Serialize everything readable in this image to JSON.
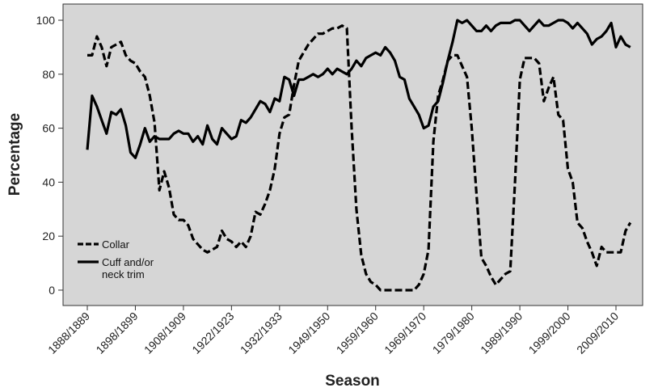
{
  "chart_data": {
    "type": "line",
    "xlabel": "Season",
    "ylabel": "Percentage",
    "categories": [
      "1888/1889",
      null,
      null,
      null,
      null,
      null,
      null,
      null,
      null,
      null,
      "1898/1899",
      null,
      null,
      null,
      null,
      null,
      null,
      null,
      null,
      null,
      "1908/1909",
      null,
      null,
      null,
      null,
      null,
      null,
      null,
      null,
      null,
      "1922/1923",
      null,
      null,
      null,
      null,
      null,
      null,
      null,
      null,
      null,
      "1932/1933",
      null,
      null,
      null,
      null,
      null,
      null,
      null,
      null,
      null,
      "1949/1950",
      null,
      null,
      null,
      null,
      null,
      null,
      null,
      null,
      null,
      "1959/1960",
      null,
      null,
      null,
      null,
      null,
      null,
      null,
      null,
      null,
      "1969/1970",
      null,
      null,
      null,
      null,
      null,
      null,
      null,
      null,
      null,
      "1979/1980",
      null,
      null,
      null,
      null,
      null,
      null,
      null,
      null,
      null,
      "1989/1990",
      null,
      null,
      null,
      null,
      null,
      null,
      null,
      null,
      null,
      "1999/2000",
      null,
      null,
      null,
      null,
      null,
      null,
      null,
      null,
      null,
      "2009/2010",
      null,
      null,
      null
    ],
    "series": [
      {
        "name": "Collar",
        "color": "#000000",
        "linestyle": "dashed",
        "values": [
          87,
          87,
          94,
          90,
          83,
          90,
          91,
          92,
          87,
          85,
          84,
          81,
          79,
          72,
          62,
          37,
          44,
          38,
          28,
          26,
          26,
          24,
          19,
          17,
          15,
          14,
          15,
          16,
          22,
          19,
          18,
          16,
          18,
          16,
          20,
          29,
          28,
          32,
          37,
          45,
          58,
          64,
          65,
          76,
          85,
          88,
          91,
          93,
          95,
          95,
          96,
          97,
          97,
          98,
          97,
          60,
          30,
          13,
          6,
          3,
          2,
          0,
          0,
          0,
          0,
          0,
          0,
          0,
          0,
          2,
          6,
          15,
          55,
          72,
          78,
          85,
          87,
          87,
          83,
          79,
          60,
          35,
          12,
          9,
          5,
          2,
          4,
          6,
          7,
          40,
          78,
          86,
          86,
          86,
          84,
          70,
          75,
          79,
          65,
          63,
          45,
          40,
          25,
          23,
          18,
          14,
          9,
          16,
          14,
          14,
          14,
          14,
          22,
          25
        ]
      },
      {
        "name": "Cuff and/or neck trim",
        "color": "#000000",
        "linestyle": "solid",
        "values": [
          52,
          72,
          68,
          63,
          58,
          66,
          65,
          67,
          61,
          51,
          49,
          54,
          60,
          55,
          57,
          56,
          56,
          56,
          58,
          59,
          58,
          58,
          55,
          57,
          54,
          61,
          56,
          54,
          60,
          58,
          56,
          57,
          63,
          62,
          64,
          67,
          70,
          69,
          66,
          71,
          70,
          79,
          78,
          72,
          78,
          78,
          79,
          80,
          79,
          80,
          82,
          80,
          82,
          81,
          80,
          82,
          85,
          83,
          86,
          87,
          88,
          87,
          90,
          88,
          85,
          79,
          78,
          71,
          68,
          65,
          60,
          61,
          68,
          70,
          77,
          85,
          92,
          100,
          99,
          100,
          98,
          96,
          96,
          98,
          96,
          98,
          99,
          99,
          99,
          100,
          100,
          98,
          96,
          98,
          100,
          98,
          98,
          99,
          100,
          100,
          99,
          97,
          99,
          97,
          95,
          91,
          93,
          94,
          96,
          99,
          90,
          94,
          91,
          90
        ]
      }
    ],
    "ylim": [
      -5.7,
      106
    ],
    "yticks": [
      0,
      20,
      40,
      60,
      80,
      100
    ],
    "background": "#d6d6d6",
    "legend": "lower left"
  }
}
